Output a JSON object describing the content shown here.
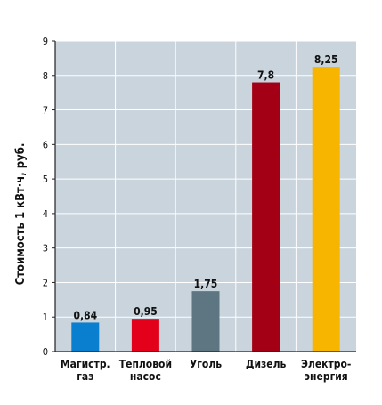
{
  "chart_data": {
    "type": "bar",
    "categories": [
      [
        "Магистр.",
        "газ"
      ],
      [
        "Тепловой",
        "насос"
      ],
      [
        "Уголь"
      ],
      [
        "Дизель"
      ],
      [
        "Электро-",
        "энергия"
      ]
    ],
    "values": [
      0.84,
      0.95,
      1.75,
      7.8,
      8.25
    ],
    "value_labels": [
      "0,84",
      "0,95",
      "1,75",
      "7,8",
      "8,25"
    ],
    "bar_colors": [
      "#0a7fcf",
      "#e3001b",
      "#5e7582",
      "#a30015",
      "#f8b500"
    ],
    "ylabel": "Стоимость 1 кВт·ч, руб.",
    "ylim": [
      0,
      9
    ],
    "yticks": [
      0,
      1,
      2,
      3,
      4,
      5,
      6,
      7,
      8,
      9
    ],
    "grid": true,
    "plot_background": "#c9d4dc",
    "grid_color": "#ffffff",
    "axis_color": "#222222"
  }
}
